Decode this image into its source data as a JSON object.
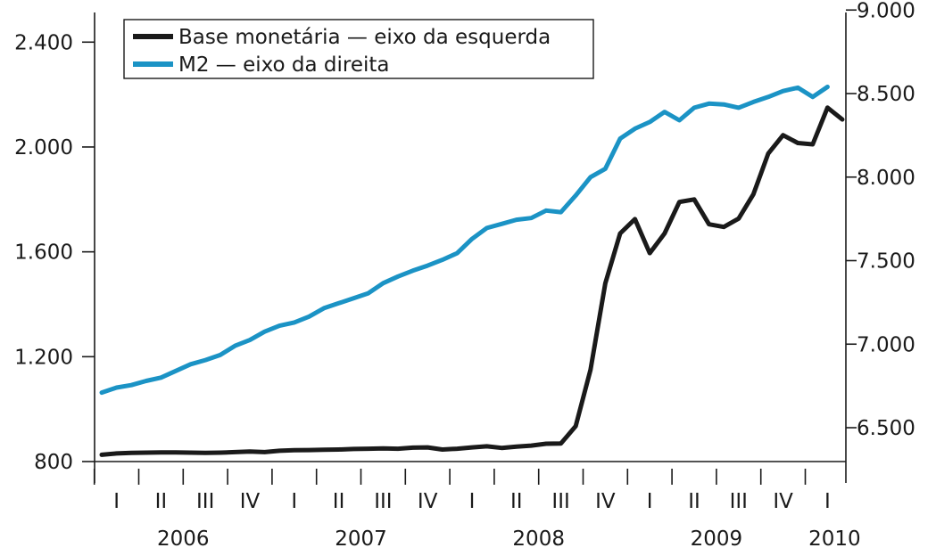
{
  "chart_data": {
    "type": "line",
    "title": "",
    "x_unit": "month",
    "y_left": {
      "label": "",
      "ylim": [
        800,
        2600
      ],
      "ticks": [
        800,
        1200,
        1600,
        2000,
        2400
      ],
      "tick_labels": [
        "800",
        "1.200",
        "1.600",
        "2.000",
        "2.400"
      ]
    },
    "y_right": {
      "label": "",
      "ylim": [
        6300,
        9000
      ],
      "ticks": [
        6500,
        7000,
        7500,
        8000,
        8500,
        9000
      ],
      "tick_labels": [
        "6.500",
        "7.000",
        "7.500",
        "8.000",
        "8.500",
        "9.000"
      ]
    },
    "x_axis": {
      "start": "2006-01",
      "end": "2010-04",
      "quarters": [
        {
          "label": "I",
          "year": 2006,
          "q": 1
        },
        {
          "label": "II",
          "year": 2006,
          "q": 2
        },
        {
          "label": "III",
          "year": 2006,
          "q": 3
        },
        {
          "label": "IV",
          "year": 2006,
          "q": 4
        },
        {
          "label": "I",
          "year": 2007,
          "q": 1
        },
        {
          "label": "II",
          "year": 2007,
          "q": 2
        },
        {
          "label": "III",
          "year": 2007,
          "q": 3
        },
        {
          "label": "IV",
          "year": 2007,
          "q": 4
        },
        {
          "label": "I",
          "year": 2008,
          "q": 1
        },
        {
          "label": "II",
          "year": 2008,
          "q": 2
        },
        {
          "label": "III",
          "year": 2008,
          "q": 3
        },
        {
          "label": "IV",
          "year": 2008,
          "q": 4
        },
        {
          "label": "I",
          "year": 2009,
          "q": 1
        },
        {
          "label": "II",
          "year": 2009,
          "q": 2
        },
        {
          "label": "III",
          "year": 2009,
          "q": 3
        },
        {
          "label": "IV",
          "year": 2009,
          "q": 4
        },
        {
          "label": "I",
          "year": 2010,
          "q": 1
        }
      ],
      "years": [
        {
          "label": "2006",
          "year": 2006
        },
        {
          "label": "2007",
          "year": 2007
        },
        {
          "label": "2008",
          "year": 2008
        },
        {
          "label": "2009",
          "year": 2009
        },
        {
          "label": "2010",
          "year": 2010
        }
      ]
    },
    "legend": {
      "position": "top-left"
    },
    "series": [
      {
        "name": "Base monetária — eixo da esquerda",
        "axis": "left",
        "color": "#1a1a1a",
        "values": [
          {
            "x": "2006-01",
            "y": 826
          },
          {
            "x": "2006-02",
            "y": 831
          },
          {
            "x": "2006-03",
            "y": 833
          },
          {
            "x": "2006-04",
            "y": 834
          },
          {
            "x": "2006-05",
            "y": 835
          },
          {
            "x": "2006-06",
            "y": 835
          },
          {
            "x": "2006-07",
            "y": 834
          },
          {
            "x": "2006-08",
            "y": 833
          },
          {
            "x": "2006-09",
            "y": 834
          },
          {
            "x": "2006-10",
            "y": 836
          },
          {
            "x": "2006-11",
            "y": 838
          },
          {
            "x": "2006-12",
            "y": 836
          },
          {
            "x": "2007-01",
            "y": 841
          },
          {
            "x": "2007-02",
            "y": 843
          },
          {
            "x": "2007-03",
            "y": 844
          },
          {
            "x": "2007-04",
            "y": 845
          },
          {
            "x": "2007-05",
            "y": 846
          },
          {
            "x": "2007-06",
            "y": 848
          },
          {
            "x": "2007-07",
            "y": 849
          },
          {
            "x": "2007-08",
            "y": 850
          },
          {
            "x": "2007-09",
            "y": 849
          },
          {
            "x": "2007-10",
            "y": 853
          },
          {
            "x": "2007-11",
            "y": 854
          },
          {
            "x": "2007-12",
            "y": 846
          },
          {
            "x": "2008-01",
            "y": 849
          },
          {
            "x": "2008-02",
            "y": 854
          },
          {
            "x": "2008-03",
            "y": 858
          },
          {
            "x": "2008-04",
            "y": 852
          },
          {
            "x": "2008-05",
            "y": 857
          },
          {
            "x": "2008-06",
            "y": 861
          },
          {
            "x": "2008-07",
            "y": 868
          },
          {
            "x": "2008-08",
            "y": 869
          },
          {
            "x": "2008-09",
            "y": 935
          },
          {
            "x": "2008-10",
            "y": 1150
          },
          {
            "x": "2008-11",
            "y": 1480
          },
          {
            "x": "2008-12",
            "y": 1670
          },
          {
            "x": "2009-01",
            "y": 1725
          },
          {
            "x": "2009-02",
            "y": 1595
          },
          {
            "x": "2009-03",
            "y": 1670
          },
          {
            "x": "2009-04",
            "y": 1790
          },
          {
            "x": "2009-05",
            "y": 1800
          },
          {
            "x": "2009-06",
            "y": 1705
          },
          {
            "x": "2009-07",
            "y": 1695
          },
          {
            "x": "2009-08",
            "y": 1727
          },
          {
            "x": "2009-09",
            "y": 1820
          },
          {
            "x": "2009-10",
            "y": 1975
          },
          {
            "x": "2009-11",
            "y": 2045
          },
          {
            "x": "2009-12",
            "y": 2015
          },
          {
            "x": "2010-01",
            "y": 2010
          },
          {
            "x": "2010-02",
            "y": 2150
          },
          {
            "x": "2010-03",
            "y": 2105
          }
        ]
      },
      {
        "name": "M2 — eixo da direita",
        "axis": "right",
        "color": "#1b93c5",
        "values": [
          {
            "x": "2006-01",
            "y": 6710
          },
          {
            "x": "2006-02",
            "y": 6740
          },
          {
            "x": "2006-03",
            "y": 6755
          },
          {
            "x": "2006-04",
            "y": 6780
          },
          {
            "x": "2006-05",
            "y": 6800
          },
          {
            "x": "2006-06",
            "y": 6840
          },
          {
            "x": "2006-07",
            "y": 6880
          },
          {
            "x": "2006-08",
            "y": 6905
          },
          {
            "x": "2006-09",
            "y": 6935
          },
          {
            "x": "2006-10",
            "y": 6990
          },
          {
            "x": "2006-11",
            "y": 7025
          },
          {
            "x": "2006-12",
            "y": 7075
          },
          {
            "x": "2007-01",
            "y": 7110
          },
          {
            "x": "2007-02",
            "y": 7130
          },
          {
            "x": "2007-03",
            "y": 7165
          },
          {
            "x": "2007-04",
            "y": 7215
          },
          {
            "x": "2007-05",
            "y": 7245
          },
          {
            "x": "2007-06",
            "y": 7275
          },
          {
            "x": "2007-07",
            "y": 7305
          },
          {
            "x": "2007-08",
            "y": 7365
          },
          {
            "x": "2007-09",
            "y": 7405
          },
          {
            "x": "2007-10",
            "y": 7440
          },
          {
            "x": "2007-11",
            "y": 7470
          },
          {
            "x": "2007-12",
            "y": 7505
          },
          {
            "x": "2008-01",
            "y": 7545
          },
          {
            "x": "2008-02",
            "y": 7630
          },
          {
            "x": "2008-03",
            "y": 7695
          },
          {
            "x": "2008-04",
            "y": 7720
          },
          {
            "x": "2008-05",
            "y": 7745
          },
          {
            "x": "2008-06",
            "y": 7755
          },
          {
            "x": "2008-07",
            "y": 7800
          },
          {
            "x": "2008-08",
            "y": 7790
          },
          {
            "x": "2008-09",
            "y": 7890
          },
          {
            "x": "2008-10",
            "y": 8000
          },
          {
            "x": "2008-11",
            "y": 8050
          },
          {
            "x": "2008-12",
            "y": 8230
          },
          {
            "x": "2009-01",
            "y": 8290
          },
          {
            "x": "2009-02",
            "y": 8330
          },
          {
            "x": "2009-03",
            "y": 8390
          },
          {
            "x": "2009-04",
            "y": 8340
          },
          {
            "x": "2009-05",
            "y": 8415
          },
          {
            "x": "2009-06",
            "y": 8440
          },
          {
            "x": "2009-07",
            "y": 8435
          },
          {
            "x": "2009-08",
            "y": 8415
          },
          {
            "x": "2009-09",
            "y": 8450
          },
          {
            "x": "2009-10",
            "y": 8480
          },
          {
            "x": "2009-11",
            "y": 8515
          },
          {
            "x": "2009-12",
            "y": 8535
          },
          {
            "x": "2010-01",
            "y": 8480
          },
          {
            "x": "2010-02",
            "y": 8540
          }
        ]
      }
    ]
  }
}
